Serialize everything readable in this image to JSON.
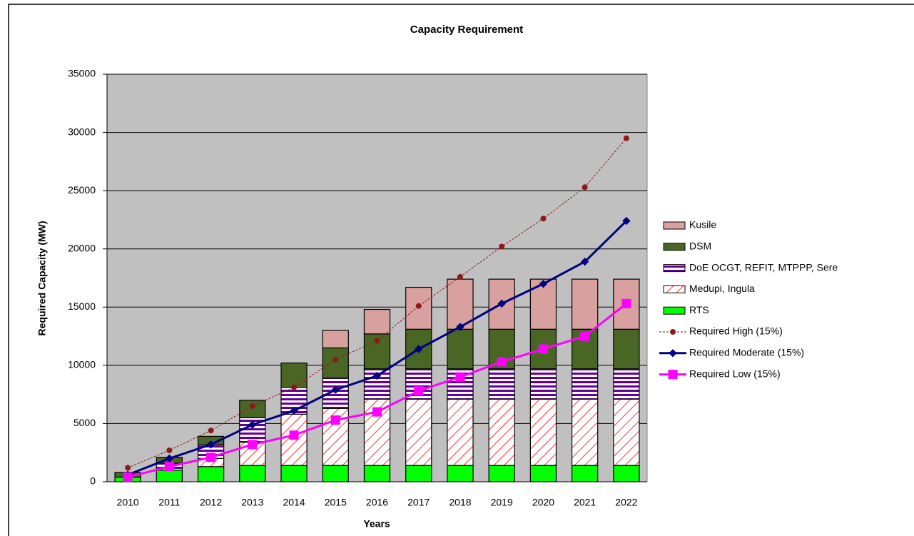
{
  "chart_data": {
    "type": "bar",
    "title": "Capacity Requirement",
    "x_label": "Years",
    "y_label": "Required Capacity (MW)",
    "categories": [
      "2010",
      "2011",
      "2012",
      "2013",
      "2014",
      "2015",
      "2016",
      "2017",
      "2018",
      "2019",
      "2020",
      "2021",
      "2022"
    ],
    "ylim": [
      0,
      35000
    ],
    "yticks": [
      0,
      5000,
      10000,
      15000,
      20000,
      25000,
      30000,
      35000
    ],
    "grid": true,
    "legend": "right",
    "series": [
      {
        "name": "RTS",
        "type": "bar",
        "color": "#00ff00",
        "values": [
          400,
          1000,
          1300,
          1400,
          1400,
          1400,
          1400,
          1400,
          1400,
          1400,
          1400,
          1400,
          1400
        ]
      },
      {
        "name": "Medupi, Ingula",
        "type": "bar",
        "color": "#ff3333",
        "pattern": "diagonal",
        "values": [
          0,
          0,
          700,
          2000,
          4400,
          4900,
          5700,
          5700,
          5700,
          5700,
          5700,
          5700,
          5700
        ]
      },
      {
        "name": "DoE OCGT, REFIT, MTPPP, Sere",
        "type": "bar",
        "color": "#660099",
        "pattern": "horizontal",
        "values": [
          0,
          600,
          1200,
          2100,
          2300,
          2600,
          2600,
          2600,
          2600,
          2600,
          2600,
          2600,
          2600
        ]
      },
      {
        "name": "DSM",
        "type": "bar",
        "color": "#4a6624",
        "values": [
          400,
          500,
          700,
          1500,
          2100,
          2600,
          3000,
          3400,
          3400,
          3400,
          3400,
          3400,
          3400
        ]
      },
      {
        "name": "Kusile",
        "type": "bar",
        "color": "#d9a0a0",
        "values": [
          0,
          0,
          0,
          0,
          0,
          1500,
          2100,
          3600,
          4300,
          4300,
          4300,
          4300,
          4300
        ]
      },
      {
        "name": "Required High (15%)",
        "type": "line",
        "color": "#8b1a1a",
        "dash": true,
        "marker": "circle",
        "values": [
          1200,
          2700,
          4400,
          6500,
          8100,
          10500,
          12100,
          15100,
          17600,
          20200,
          22600,
          25300,
          29500
        ]
      },
      {
        "name": "Required Moderate (15%)",
        "type": "line",
        "color": "#000080",
        "marker": "diamond",
        "values": [
          600,
          2000,
          3200,
          4900,
          6100,
          7900,
          9100,
          11400,
          13300,
          15300,
          17000,
          18900,
          22400
        ]
      },
      {
        "name": "Required Low (15%)",
        "type": "line",
        "color": "#ff00ff",
        "marker": "square",
        "values": [
          400,
          1300,
          2100,
          3200,
          4000,
          5300,
          6000,
          7800,
          9000,
          10300,
          11400,
          12500,
          15300
        ]
      }
    ]
  }
}
